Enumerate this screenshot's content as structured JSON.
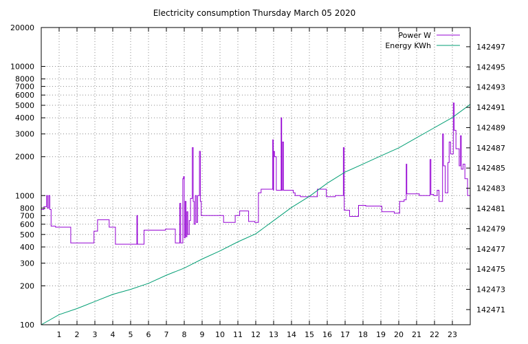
{
  "chart_data": {
    "type": "line",
    "title": "Electricity consumption Thursday March 05 2020",
    "xlabel": "",
    "ylabel": "",
    "y2label": "",
    "grid": true,
    "legend_position": "top-right",
    "xlim": [
      0,
      24
    ],
    "ylim": [
      100,
      20000
    ],
    "y_scale": "log",
    "y2lim": [
      142469.5,
      142498.9
    ],
    "x_ticks": [
      1,
      2,
      3,
      4,
      5,
      6,
      7,
      8,
      9,
      10,
      11,
      12,
      13,
      14,
      15,
      16,
      17,
      18,
      19,
      20,
      21,
      22,
      23
    ],
    "y_ticks": [
      {
        "value": 100,
        "label": "100"
      },
      {
        "value": 200,
        "label": "200"
      },
      {
        "value": 300,
        "label": "300"
      },
      {
        "value": 400,
        "label": "400"
      },
      {
        "value": 500,
        "label": "500"
      },
      {
        "value": 600,
        "label": "600"
      },
      {
        "value": 700,
        "label": "700"
      },
      {
        "value": 800,
        "label": "800"
      },
      {
        "value": 1000,
        "label": "1000"
      },
      {
        "value": 2000,
        "label": "2000"
      },
      {
        "value": 3000,
        "label": "3000"
      },
      {
        "value": 4000,
        "label": "4000"
      },
      {
        "value": 5000,
        "label": "5000"
      },
      {
        "value": 6000,
        "label": "6000"
      },
      {
        "value": 7000,
        "label": "7000"
      },
      {
        "value": 8000,
        "label": "8000"
      },
      {
        "value": 10000,
        "label": "10000"
      },
      {
        "value": 20000,
        "label": "20000"
      }
    ],
    "y2_ticks": [
      142471,
      142473,
      142475,
      142477,
      142479,
      142481,
      142483,
      142485,
      142487,
      142489,
      142491,
      142493,
      142495,
      142497
    ],
    "series": [
      {
        "name": "Power W",
        "axis": "y",
        "color": "#9400d3",
        "step": true,
        "points": [
          [
            0.0,
            780
          ],
          [
            0.15,
            820
          ],
          [
            0.3,
            1000
          ],
          [
            0.35,
            800
          ],
          [
            0.42,
            1000
          ],
          [
            0.48,
            780
          ],
          [
            0.55,
            580
          ],
          [
            0.8,
            570
          ],
          [
            1.6,
            570
          ],
          [
            1.65,
            430
          ],
          [
            2.9,
            430
          ],
          [
            2.95,
            530
          ],
          [
            3.15,
            650
          ],
          [
            3.8,
            570
          ],
          [
            4.15,
            420
          ],
          [
            5.3,
            420
          ],
          [
            5.35,
            700
          ],
          [
            5.38,
            420
          ],
          [
            5.75,
            540
          ],
          [
            6.95,
            550
          ],
          [
            7.5,
            430
          ],
          [
            7.75,
            870
          ],
          [
            7.8,
            430
          ],
          [
            7.92,
            1350
          ],
          [
            7.96,
            1400
          ],
          [
            8.0,
            470
          ],
          [
            8.05,
            900
          ],
          [
            8.1,
            480
          ],
          [
            8.15,
            750
          ],
          [
            8.2,
            500
          ],
          [
            8.28,
            640
          ],
          [
            8.35,
            950
          ],
          [
            8.45,
            2350
          ],
          [
            8.5,
            900
          ],
          [
            8.55,
            600
          ],
          [
            8.62,
            1000
          ],
          [
            8.68,
            620
          ],
          [
            8.75,
            1000
          ],
          [
            8.85,
            2200
          ],
          [
            8.9,
            900
          ],
          [
            8.95,
            700
          ],
          [
            10.2,
            620
          ],
          [
            10.85,
            700
          ],
          [
            11.1,
            760
          ],
          [
            11.6,
            630
          ],
          [
            11.95,
            620
          ],
          [
            12.15,
            1050
          ],
          [
            12.3,
            1120
          ],
          [
            12.95,
            2700
          ],
          [
            12.98,
            1100
          ],
          [
            13.0,
            2200
          ],
          [
            13.05,
            2000
          ],
          [
            13.15,
            1100
          ],
          [
            13.42,
            4000
          ],
          [
            13.45,
            1100
          ],
          [
            13.5,
            2600
          ],
          [
            13.55,
            1100
          ],
          [
            14.1,
            1050
          ],
          [
            14.2,
            1000
          ],
          [
            14.5,
            980
          ],
          [
            15.45,
            1120
          ],
          [
            15.95,
            980
          ],
          [
            16.45,
            1000
          ],
          [
            16.9,
            2350
          ],
          [
            16.95,
            770
          ],
          [
            17.25,
            690
          ],
          [
            17.75,
            840
          ],
          [
            18.15,
            830
          ],
          [
            19.05,
            750
          ],
          [
            19.75,
            730
          ],
          [
            20.05,
            900
          ],
          [
            20.3,
            930
          ],
          [
            20.42,
            1750
          ],
          [
            20.45,
            1030
          ],
          [
            21.15,
            1000
          ],
          [
            21.65,
            1000
          ],
          [
            21.75,
            1900
          ],
          [
            21.8,
            1020
          ],
          [
            21.95,
            1000
          ],
          [
            22.15,
            1100
          ],
          [
            22.25,
            900
          ],
          [
            22.45,
            3000
          ],
          [
            22.5,
            1700
          ],
          [
            22.6,
            1050
          ],
          [
            22.75,
            1800
          ],
          [
            22.82,
            2600
          ],
          [
            22.9,
            2100
          ],
          [
            23.0,
            2100
          ],
          [
            23.05,
            5200
          ],
          [
            23.1,
            3200
          ],
          [
            23.2,
            2300
          ],
          [
            23.38,
            1700
          ],
          [
            23.45,
            2900
          ],
          [
            23.5,
            1600
          ],
          [
            23.6,
            1750
          ],
          [
            23.7,
            1350
          ],
          [
            23.85,
            1000
          ],
          [
            24.0,
            1000
          ]
        ]
      },
      {
        "name": "Energy KWh",
        "axis": "y2",
        "color": "#009e73",
        "step": false,
        "points": [
          [
            0.0,
            142469.5
          ],
          [
            1.0,
            142470.5
          ],
          [
            2.0,
            142471.1
          ],
          [
            3.0,
            142471.8
          ],
          [
            4.0,
            142472.5
          ],
          [
            5.0,
            142473.0
          ],
          [
            6.0,
            142473.6
          ],
          [
            7.0,
            142474.4
          ],
          [
            8.0,
            142475.1
          ],
          [
            9.0,
            142476.0
          ],
          [
            10.0,
            142476.8
          ],
          [
            11.0,
            142477.7
          ],
          [
            12.0,
            142478.5
          ],
          [
            13.0,
            142479.8
          ],
          [
            14.0,
            142481.1
          ],
          [
            15.0,
            142482.2
          ],
          [
            16.0,
            142483.5
          ],
          [
            17.0,
            142484.6
          ],
          [
            18.0,
            142485.4
          ],
          [
            19.0,
            142486.2
          ],
          [
            20.0,
            142487.0
          ],
          [
            21.0,
            142488.0
          ],
          [
            22.0,
            142489.0
          ],
          [
            23.0,
            142490.0
          ],
          [
            24.0,
            142491.3
          ]
        ]
      }
    ]
  }
}
